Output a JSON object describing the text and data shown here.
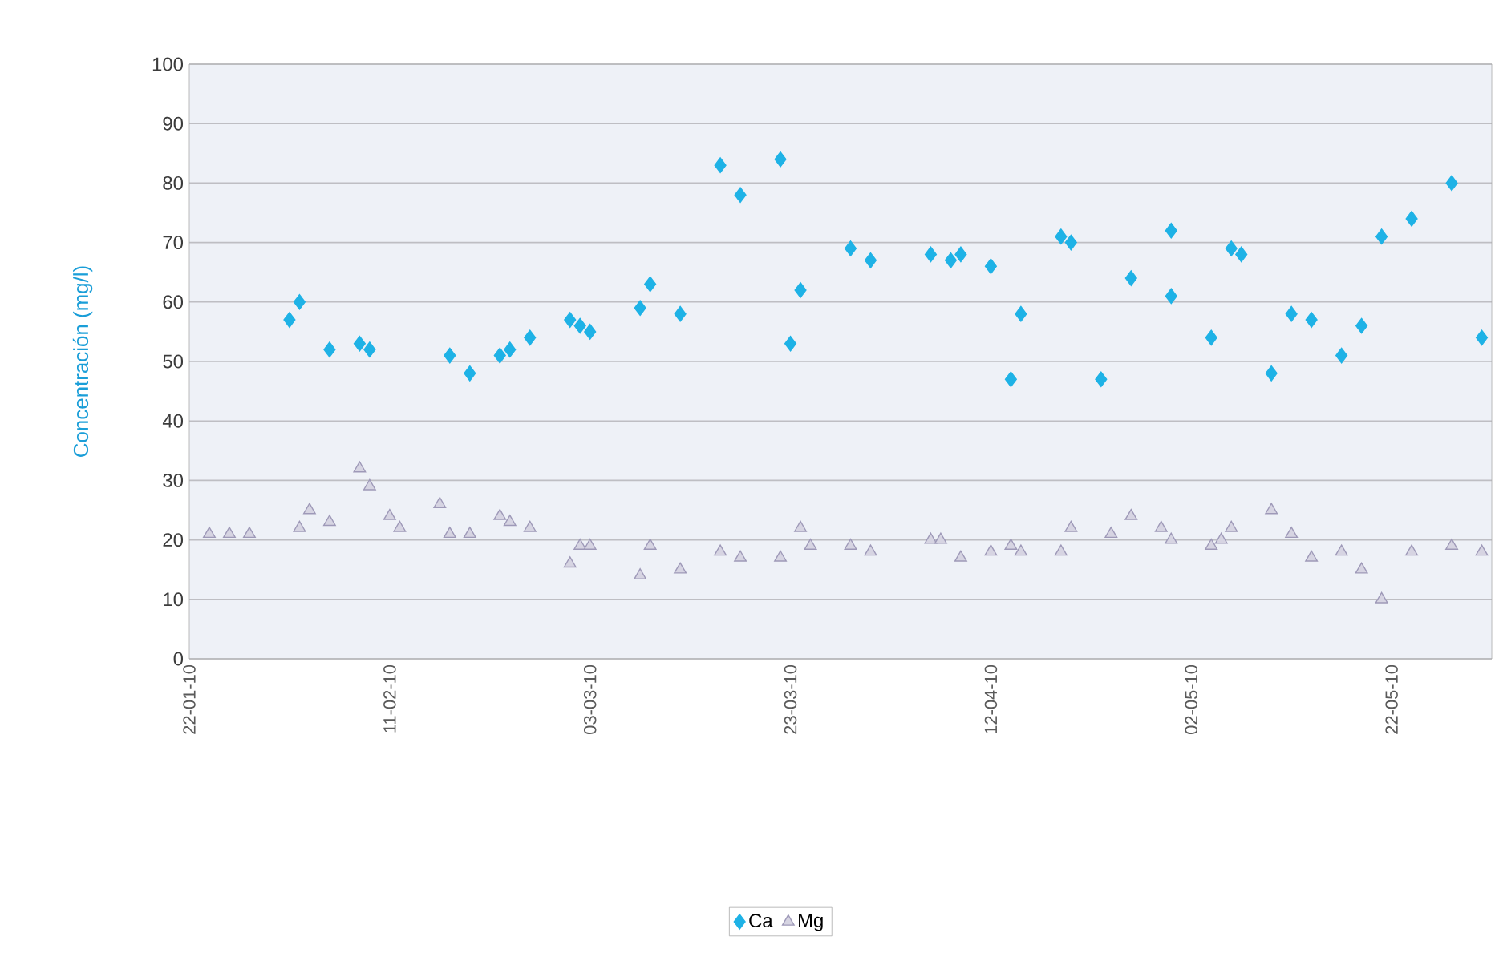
{
  "chart_data": {
    "type": "scatter",
    "ylabel": "Concentración (mg/l)",
    "xlim": [
      "2010-01-22",
      "2010-06-01"
    ],
    "xticks": [
      {
        "value": "2010-01-22",
        "label": "22-01-10"
      },
      {
        "value": "2010-02-11",
        "label": "11-02-10"
      },
      {
        "value": "2010-03-03",
        "label": "03-03-10"
      },
      {
        "value": "2010-03-23",
        "label": "23-03-10"
      },
      {
        "value": "2010-04-12",
        "label": "12-04-10"
      },
      {
        "value": "2010-05-02",
        "label": "02-05-10"
      },
      {
        "value": "2010-05-22",
        "label": "22-05-10"
      }
    ],
    "ylim": [
      0,
      100
    ],
    "yticks": [
      0,
      10,
      20,
      30,
      40,
      50,
      60,
      70,
      80,
      90,
      100
    ],
    "grid": "y",
    "legend": "bottom",
    "series": [
      {
        "name": "Ca",
        "color": "#1eb2e6",
        "marker": "diamond",
        "x": [
          "2010-02-01",
          "2010-02-02",
          "2010-02-05",
          "2010-02-08",
          "2010-02-09",
          "2010-02-17",
          "2010-02-19",
          "2010-02-22",
          "2010-02-23",
          "2010-02-25",
          "2010-03-01",
          "2010-03-02",
          "2010-03-03",
          "2010-03-08",
          "2010-03-09",
          "2010-03-12",
          "2010-03-16",
          "2010-03-18",
          "2010-03-22",
          "2010-03-23",
          "2010-03-24",
          "2010-03-29",
          "2010-03-31",
          "2010-04-06",
          "2010-04-08",
          "2010-04-09",
          "2010-04-12",
          "2010-04-14",
          "2010-04-15",
          "2010-04-19",
          "2010-04-20",
          "2010-04-23",
          "2010-04-26",
          "2010-04-30",
          "2010-04-30",
          "2010-05-04",
          "2010-05-06",
          "2010-05-07",
          "2010-05-10",
          "2010-05-12",
          "2010-05-14",
          "2010-05-17",
          "2010-05-19",
          "2010-05-21",
          "2010-05-24",
          "2010-05-28",
          "2010-05-31"
        ],
        "values": [
          57,
          60,
          52,
          53,
          52,
          51,
          48,
          51,
          52,
          54,
          57,
          56,
          55,
          59,
          63,
          58,
          83,
          78,
          84,
          53,
          62,
          69,
          67,
          68,
          67,
          68,
          66,
          47,
          58,
          71,
          70,
          47,
          64,
          72,
          61,
          54,
          69,
          68,
          48,
          58,
          57,
          51,
          56,
          71,
          74,
          80,
          54
        ]
      },
      {
        "name": "Mg",
        "color": "#9e99b8",
        "marker": "triangle",
        "x": [
          "2010-01-24",
          "2010-01-26",
          "2010-01-28",
          "2010-02-02",
          "2010-02-03",
          "2010-02-05",
          "2010-02-08",
          "2010-02-09",
          "2010-02-11",
          "2010-02-12",
          "2010-02-16",
          "2010-02-17",
          "2010-02-19",
          "2010-02-22",
          "2010-02-23",
          "2010-02-25",
          "2010-03-01",
          "2010-03-02",
          "2010-03-03",
          "2010-03-08",
          "2010-03-09",
          "2010-03-12",
          "2010-03-16",
          "2010-03-18",
          "2010-03-22",
          "2010-03-24",
          "2010-03-25",
          "2010-03-29",
          "2010-03-31",
          "2010-04-06",
          "2010-04-07",
          "2010-04-09",
          "2010-04-12",
          "2010-04-14",
          "2010-04-15",
          "2010-04-19",
          "2010-04-20",
          "2010-04-24",
          "2010-04-26",
          "2010-04-29",
          "2010-04-30",
          "2010-05-04",
          "2010-05-05",
          "2010-05-06",
          "2010-05-10",
          "2010-05-12",
          "2010-05-14",
          "2010-05-17",
          "2010-05-19",
          "2010-05-21",
          "2010-05-24",
          "2010-05-28",
          "2010-05-31"
        ],
        "values": [
          21,
          21,
          21,
          22,
          25,
          23,
          32,
          29,
          24,
          22,
          26,
          21,
          21,
          24,
          23,
          22,
          16,
          19,
          19,
          14,
          19,
          15,
          18,
          17,
          17,
          22,
          19,
          19,
          18,
          20,
          20,
          17,
          18,
          19,
          18,
          18,
          22,
          21,
          24,
          22,
          20,
          19,
          20,
          22,
          25,
          21,
          17,
          18,
          15,
          10,
          18,
          19,
          18
        ]
      }
    ]
  }
}
